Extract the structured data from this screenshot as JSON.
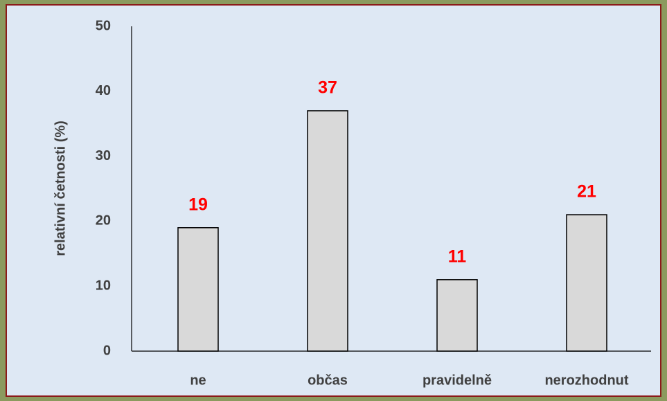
{
  "chart_data": {
    "type": "bar",
    "ylabel": "relativní četnosti (%)",
    "categories": [
      "ne",
      "občas",
      "pravidelně",
      "nerozhodnut"
    ],
    "values": [
      19,
      37,
      11,
      21
    ],
    "color": "#d9d9d9",
    "label_color": "#ff0000",
    "ylim": [
      0,
      50
    ],
    "yticks": [
      0,
      10,
      20,
      30,
      40,
      50
    ],
    "grid": false
  }
}
